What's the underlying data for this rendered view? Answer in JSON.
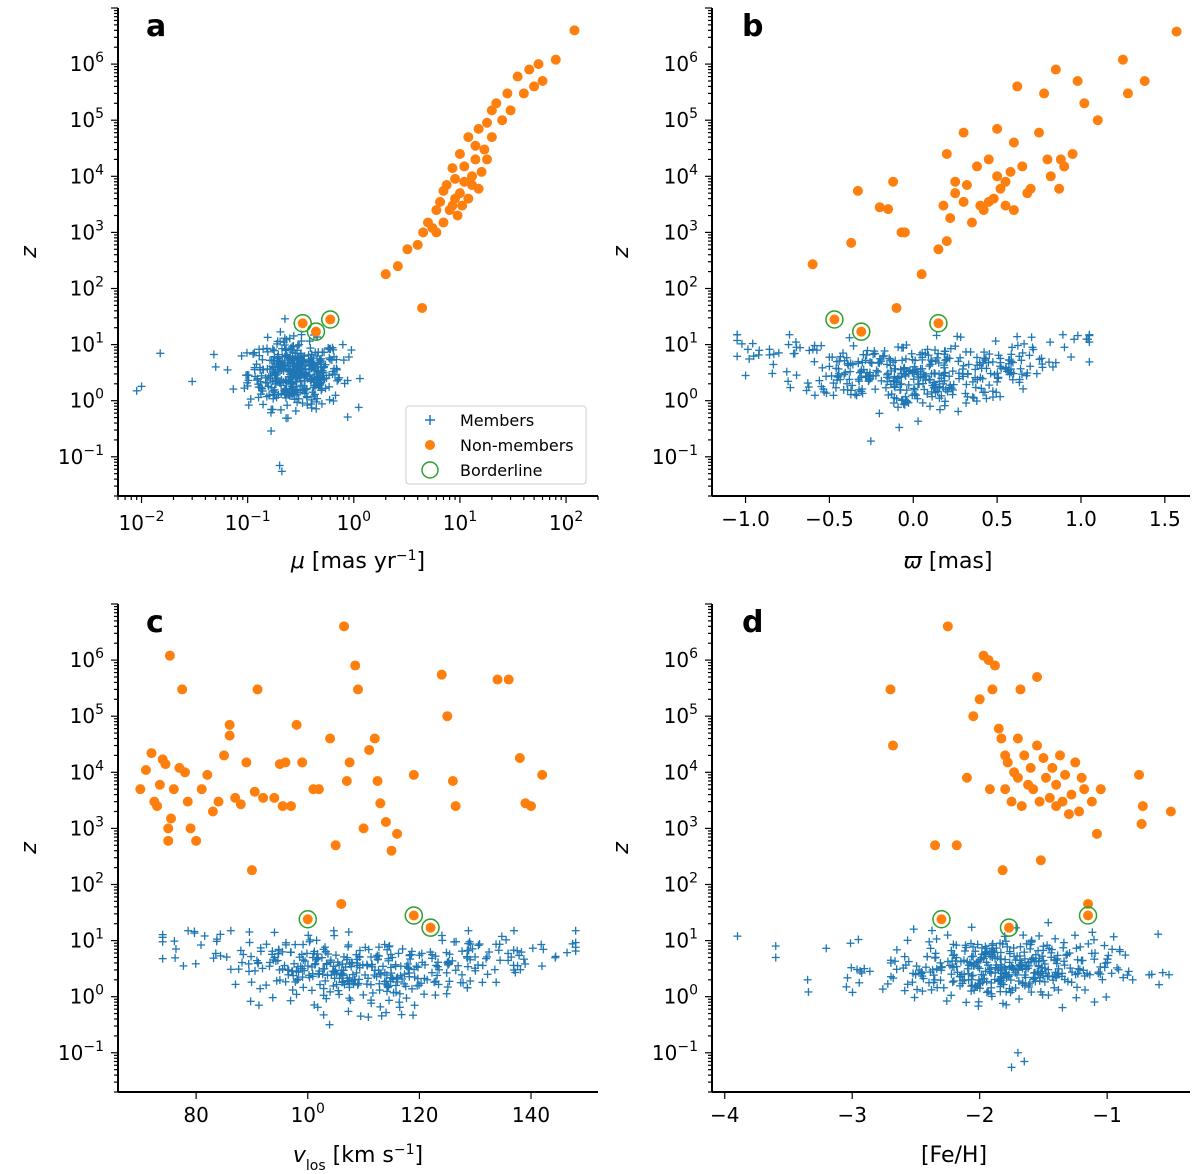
{
  "colors": {
    "members": "#1f77b4",
    "nonmembers": "#ff7f0e",
    "borderline": "#2ca02c"
  },
  "legend": {
    "members": "Members",
    "nonmembers": "Non-members",
    "borderline": "Borderline",
    "placement": "lower-right of panel a"
  },
  "chart_data": [
    {
      "panel": "a",
      "type": "scatter",
      "xscale": "log",
      "yscale": "log",
      "xlabel": "μ [mas yr⁻¹]",
      "ylabel": "z",
      "xlim": [
        0.006,
        200
      ],
      "ylim": [
        0.02,
        10000000
      ],
      "xticks": [
        {
          "v": 0.01,
          "t": "10−2"
        },
        {
          "v": 0.1,
          "t": "10−1"
        },
        {
          "v": 1,
          "t": "100"
        },
        {
          "v": 10,
          "t": "101"
        },
        {
          "v": 100,
          "t": "102"
        }
      ],
      "yticks": [
        {
          "v": 0.1,
          "t": "10−1"
        },
        {
          "v": 1,
          "t": "100"
        },
        {
          "v": 10,
          "t": "101"
        },
        {
          "v": 100,
          "t": "102"
        },
        {
          "v": 1000,
          "t": "103"
        },
        {
          "v": 10000,
          "t": "104"
        },
        {
          "v": 100000,
          "t": "105"
        },
        {
          "v": 1000000,
          "t": "106"
        }
      ],
      "members_cloud": {
        "xcenter": 0.28,
        "xspread_dex": 0.22,
        "ycenter": 3.0,
        "yspread_dex": 0.3,
        "n": 420
      },
      "members_outliers": [
        [
          0.009,
          1.5
        ],
        [
          0.01,
          1.8
        ],
        [
          0.015,
          7
        ],
        [
          0.2,
          0.07
        ],
        [
          0.21,
          0.055
        ],
        [
          0.9,
          6
        ],
        [
          0.95,
          8
        ],
        [
          0.03,
          2.2
        ],
        [
          0.05,
          4
        ]
      ],
      "nonmembers": [
        [
          2,
          180
        ],
        [
          2.6,
          250
        ],
        [
          3.2,
          500
        ],
        [
          4,
          600
        ],
        [
          4.4,
          45
        ],
        [
          4.5,
          1000
        ],
        [
          5,
          1500
        ],
        [
          5.5,
          1200
        ],
        [
          6,
          1000
        ],
        [
          6,
          2500
        ],
        [
          6.5,
          3500
        ],
        [
          7,
          1500
        ],
        [
          7,
          5500
        ],
        [
          7.5,
          7000
        ],
        [
          8,
          2500
        ],
        [
          8.5,
          3000
        ],
        [
          8.5,
          14000
        ],
        [
          9,
          4000
        ],
        [
          9,
          9000
        ],
        [
          9.5,
          2000
        ],
        [
          10,
          5000
        ],
        [
          10,
          25000
        ],
        [
          10.5,
          3000
        ],
        [
          11,
          8000
        ],
        [
          11,
          15000
        ],
        [
          12,
          4000
        ],
        [
          12,
          50000
        ],
        [
          13,
          7000
        ],
        [
          13,
          10000
        ],
        [
          14,
          20000
        ],
        [
          14,
          35000
        ],
        [
          15,
          6000
        ],
        [
          15,
          70000
        ],
        [
          16,
          12000
        ],
        [
          17,
          30000
        ],
        [
          18,
          20000
        ],
        [
          18,
          90000
        ],
        [
          20,
          50000
        ],
        [
          20,
          150000
        ],
        [
          22,
          200000
        ],
        [
          25,
          100000
        ],
        [
          28,
          300000
        ],
        [
          30,
          150000
        ],
        [
          35,
          600000
        ],
        [
          40,
          300000
        ],
        [
          45,
          800000
        ],
        [
          50,
          400000
        ],
        [
          55,
          1000000
        ],
        [
          60,
          500000
        ],
        [
          80,
          1200000
        ],
        [
          120,
          4000000
        ]
      ],
      "borderline": [
        [
          0.33,
          24
        ],
        [
          0.44,
          17
        ],
        [
          0.6,
          28
        ]
      ]
    },
    {
      "panel": "b",
      "type": "scatter",
      "xscale": "linear",
      "yscale": "log",
      "xlabel": "ϖ [mas]",
      "ylabel": "z",
      "xlim": [
        -1.2,
        1.65
      ],
      "ylim": [
        0.02,
        10000000
      ],
      "xticks": [
        {
          "v": -1.0,
          "t": "−1.0"
        },
        {
          "v": -0.5,
          "t": "−0.5"
        },
        {
          "v": 0.0,
          "t": "0.0"
        },
        {
          "v": 0.5,
          "t": "0.5"
        },
        {
          "v": 1.0,
          "t": "1.0"
        },
        {
          "v": 1.5,
          "t": "1.5"
        }
      ],
      "yticks": [
        {
          "v": 0.1,
          "t": "10−1"
        },
        {
          "v": 1,
          "t": "100"
        },
        {
          "v": 10,
          "t": "101"
        },
        {
          "v": 100,
          "t": "102"
        },
        {
          "v": 1000,
          "t": "103"
        },
        {
          "v": 10000,
          "t": "104"
        },
        {
          "v": 100000,
          "t": "105"
        },
        {
          "v": 1000000,
          "t": "106"
        }
      ],
      "members_vshape": {
        "xcenter": 0.0,
        "xhalfwidth": 1.05,
        "n": 420
      },
      "nonmembers": [
        [
          -0.6,
          270
        ],
        [
          -0.37,
          650
        ],
        [
          -0.33,
          5500
        ],
        [
          -0.2,
          2800
        ],
        [
          -0.15,
          2600
        ],
        [
          -0.12,
          8000
        ],
        [
          -0.1,
          45
        ],
        [
          -0.07,
          1000
        ],
        [
          -0.05,
          1000
        ],
        [
          0.05,
          180
        ],
        [
          0.15,
          500
        ],
        [
          0.2,
          700
        ],
        [
          0.18,
          3000
        ],
        [
          0.2,
          25000
        ],
        [
          0.22,
          1800
        ],
        [
          0.25,
          5000
        ],
        [
          0.25,
          8000
        ],
        [
          0.3,
          60000
        ],
        [
          0.3,
          3500
        ],
        [
          0.32,
          7000
        ],
        [
          0.35,
          1500
        ],
        [
          0.38,
          15000
        ],
        [
          0.4,
          3000
        ],
        [
          0.42,
          2500
        ],
        [
          0.45,
          3500
        ],
        [
          0.45,
          20000
        ],
        [
          0.48,
          4000
        ],
        [
          0.5,
          70000
        ],
        [
          0.5,
          10000
        ],
        [
          0.52,
          6000
        ],
        [
          0.55,
          3000
        ],
        [
          0.55,
          8000
        ],
        [
          0.58,
          12000
        ],
        [
          0.6,
          2500
        ],
        [
          0.6,
          40000
        ],
        [
          0.62,
          400000
        ],
        [
          0.65,
          15000
        ],
        [
          0.68,
          5000
        ],
        [
          0.7,
          6000
        ],
        [
          0.75,
          60000
        ],
        [
          0.78,
          300000
        ],
        [
          0.8,
          20000
        ],
        [
          0.82,
          10000
        ],
        [
          0.85,
          800000
        ],
        [
          0.87,
          6000
        ],
        [
          0.88,
          20000
        ],
        [
          0.9,
          15000
        ],
        [
          0.95,
          25000
        ],
        [
          0.98,
          500000
        ],
        [
          1.02,
          200000
        ],
        [
          1.1,
          100000
        ],
        [
          1.25,
          1200000
        ],
        [
          1.28,
          300000
        ],
        [
          1.38,
          500000
        ],
        [
          1.57,
          3800000
        ]
      ],
      "borderline": [
        [
          -0.47,
          28
        ],
        [
          -0.31,
          17
        ],
        [
          0.15,
          24
        ]
      ]
    },
    {
      "panel": "c",
      "type": "scatter",
      "xscale": "linear",
      "yscale": "log",
      "xlabel": "v_los [km s⁻¹]",
      "ylabel": "z",
      "xlim": [
        66,
        152
      ],
      "ylim": [
        0.02,
        10000000
      ],
      "xticks": [
        {
          "v": 80,
          "t": "80"
        },
        {
          "v": 100,
          "t": "100"
        },
        {
          "v": 120,
          "t": "120"
        },
        {
          "v": 140,
          "t": "140"
        }
      ],
      "yticks": [
        {
          "v": 0.1,
          "t": "10−1"
        },
        {
          "v": 1,
          "t": "100"
        },
        {
          "v": 10,
          "t": "101"
        },
        {
          "v": 100,
          "t": "102"
        },
        {
          "v": 1000,
          "t": "103"
        },
        {
          "v": 10000,
          "t": "104"
        },
        {
          "v": 100000,
          "t": "105"
        },
        {
          "v": 1000000,
          "t": "106"
        }
      ],
      "members_vshape": {
        "xcenter": 111,
        "xhalfwidth": 37,
        "n": 420
      },
      "nonmembers": [
        [
          70,
          5000
        ],
        [
          71,
          11000
        ],
        [
          72,
          22000
        ],
        [
          72.5,
          3000
        ],
        [
          73,
          2500
        ],
        [
          73.5,
          6000
        ],
        [
          74,
          17000
        ],
        [
          74.5,
          14000
        ],
        [
          75,
          1000
        ],
        [
          75,
          600
        ],
        [
          75.3,
          1200000
        ],
        [
          75.5,
          1500
        ],
        [
          76,
          5000
        ],
        [
          77,
          12000
        ],
        [
          77.5,
          300000
        ],
        [
          78,
          10000
        ],
        [
          78.5,
          3000
        ],
        [
          79,
          1000
        ],
        [
          80,
          600
        ],
        [
          81,
          5000
        ],
        [
          82,
          9000
        ],
        [
          83,
          2000
        ],
        [
          84,
          3000
        ],
        [
          85,
          20000
        ],
        [
          86,
          70000
        ],
        [
          86,
          45000
        ],
        [
          87,
          3500
        ],
        [
          88,
          2700
        ],
        [
          89,
          15000
        ],
        [
          90,
          180
        ],
        [
          90.5,
          4500
        ],
        [
          91,
          300000
        ],
        [
          92,
          3500
        ],
        [
          94,
          3500
        ],
        [
          95,
          14000
        ],
        [
          95.5,
          2500
        ],
        [
          96,
          15000
        ],
        [
          97,
          2500
        ],
        [
          98,
          70000
        ],
        [
          99,
          15000
        ],
        [
          101,
          5000
        ],
        [
          102,
          5000
        ],
        [
          104,
          40000
        ],
        [
          105,
          500
        ],
        [
          106,
          45
        ],
        [
          106.5,
          4000000
        ],
        [
          107,
          7000
        ],
        [
          107.5,
          15000
        ],
        [
          108.5,
          800000
        ],
        [
          109,
          300000
        ],
        [
          110,
          1000
        ],
        [
          111,
          25000
        ],
        [
          112,
          40000
        ],
        [
          112.5,
          7000
        ],
        [
          113,
          2800
        ],
        [
          114,
          1300
        ],
        [
          115,
          400
        ],
        [
          116,
          800
        ],
        [
          119,
          9000
        ],
        [
          124,
          550000
        ],
        [
          125,
          100000
        ],
        [
          126,
          7000
        ],
        [
          126.5,
          2500
        ],
        [
          134,
          450000
        ],
        [
          136,
          450000
        ],
        [
          138,
          18000
        ],
        [
          139,
          2800
        ],
        [
          140,
          2500
        ],
        [
          142,
          9000
        ]
      ],
      "borderline": [
        [
          100,
          24
        ],
        [
          119,
          28
        ],
        [
          122,
          17
        ]
      ]
    },
    {
      "panel": "d",
      "type": "scatter",
      "xscale": "linear",
      "yscale": "log",
      "xlabel": "[Fe/H]",
      "ylabel": "z",
      "xlim": [
        -4.1,
        -0.35
      ],
      "ylim": [
        0.02,
        10000000
      ],
      "xticks": [
        {
          "v": -4,
          "t": "−4"
        },
        {
          "v": -3,
          "t": "−3"
        },
        {
          "v": -2,
          "t": "−2"
        },
        {
          "v": -1,
          "t": "−1"
        }
      ],
      "yticks": [
        {
          "v": 0.1,
          "t": "10−1"
        },
        {
          "v": 1,
          "t": "100"
        },
        {
          "v": 10,
          "t": "101"
        },
        {
          "v": 100,
          "t": "102"
        },
        {
          "v": 1000,
          "t": "103"
        },
        {
          "v": 10000,
          "t": "104"
        },
        {
          "v": 100000,
          "t": "105"
        },
        {
          "v": 1000000,
          "t": "106"
        }
      ],
      "members_cloud": {
        "xcenter": -1.85,
        "xspread": 0.45,
        "ycenter": 3.2,
        "yspread_dex": 0.28,
        "n": 420
      },
      "members_outliers": [
        [
          -3.9,
          12
        ],
        [
          -3.6,
          5
        ],
        [
          -3.6,
          8
        ],
        [
          -3.35,
          2
        ],
        [
          -1.7,
          0.1
        ],
        [
          -1.65,
          0.07
        ],
        [
          -1.75,
          0.055
        ],
        [
          -0.6,
          13
        ],
        [
          -0.65,
          2.5
        ],
        [
          -0.8,
          2
        ]
      ],
      "nonmembers": [
        [
          -2.7,
          300000
        ],
        [
          -2.68,
          30000
        ],
        [
          -2.35,
          500
        ],
        [
          -2.25,
          4000000
        ],
        [
          -2.18,
          500
        ],
        [
          -2.1,
          8000
        ],
        [
          -2.05,
          100000
        ],
        [
          -2.0,
          200000
        ],
        [
          -1.97,
          1200000
        ],
        [
          -1.93,
          1000000
        ],
        [
          -1.92,
          5000
        ],
        [
          -1.9,
          300000
        ],
        [
          -1.88,
          800000
        ],
        [
          -1.85,
          60000
        ],
        [
          -1.83,
          40000
        ],
        [
          -1.82,
          180
        ],
        [
          -1.8,
          5000
        ],
        [
          -1.8,
          20000
        ],
        [
          -1.78,
          15000
        ],
        [
          -1.75,
          3000
        ],
        [
          -1.73,
          10000
        ],
        [
          -1.7,
          40000
        ],
        [
          -1.7,
          8000
        ],
        [
          -1.68,
          300000
        ],
        [
          -1.67,
          2500
        ],
        [
          -1.65,
          20000
        ],
        [
          -1.62,
          6000
        ],
        [
          -1.6,
          12000
        ],
        [
          -1.58,
          5000
        ],
        [
          -1.55,
          30000
        ],
        [
          -1.55,
          500000
        ],
        [
          -1.53,
          3000
        ],
        [
          -1.52,
          270
        ],
        [
          -1.5,
          18000
        ],
        [
          -1.48,
          8000
        ],
        [
          -1.45,
          3500
        ],
        [
          -1.43,
          12000
        ],
        [
          -1.4,
          2500
        ],
        [
          -1.4,
          6000
        ],
        [
          -1.37,
          20000
        ],
        [
          -1.35,
          3000
        ],
        [
          -1.33,
          9000
        ],
        [
          -1.3,
          1800
        ],
        [
          -1.28,
          4000
        ],
        [
          -1.25,
          15000
        ],
        [
          -1.22,
          2000
        ],
        [
          -1.2,
          8000
        ],
        [
          -1.18,
          5000
        ],
        [
          -1.15,
          45
        ],
        [
          -1.12,
          3000
        ],
        [
          -1.08,
          800
        ],
        [
          -1.05,
          5000
        ],
        [
          -0.75,
          9000
        ],
        [
          -0.73,
          1200
        ],
        [
          -0.72,
          2500
        ],
        [
          -0.5,
          2000
        ]
      ],
      "borderline": [
        [
          -2.3,
          24
        ],
        [
          -1.77,
          17
        ],
        [
          -1.15,
          28
        ]
      ]
    }
  ]
}
